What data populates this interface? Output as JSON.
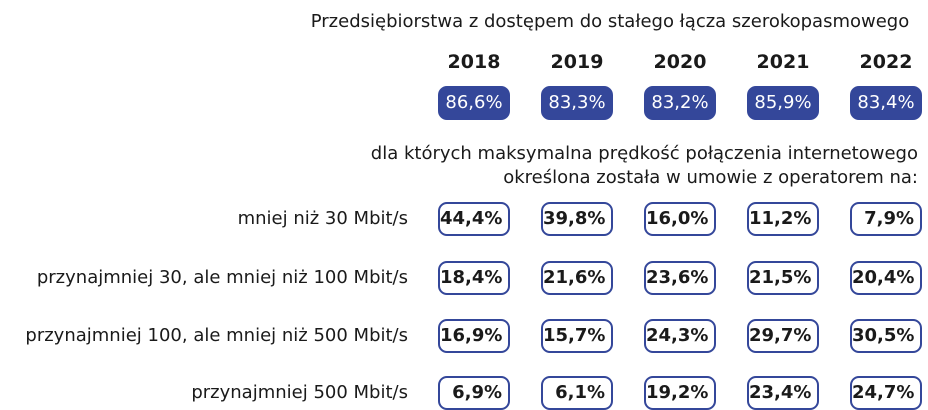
{
  "header": {
    "title": "Przedsiębiorstwa z dostępem do stałego łącza szerokopasmowego"
  },
  "years": [
    "2018",
    "2019",
    "2020",
    "2021",
    "2022"
  ],
  "access": [
    "86,6%",
    "83,3%",
    "83,2%",
    "85,9%",
    "83,4%"
  ],
  "subtitle": [
    "dla których maksymalna prędkość połączenia internetowego",
    "określona została w umowie z operatorem na:"
  ],
  "rows": [
    {
      "label": "mniej niż 30 Mbit/s",
      "values": [
        "44,4%",
        "39,8%",
        "16,0%",
        "11,2%",
        "7,9%"
      ]
    },
    {
      "label": "przynajmniej 30, ale mniej niż 100 Mbit/s",
      "values": [
        "18,4%",
        "21,6%",
        "23,6%",
        "21,5%",
        "20,4%"
      ]
    },
    {
      "label": "przynajmniej 100, ale mniej niż 500 Mbit/s",
      "values": [
        "16,9%",
        "15,7%",
        "24,3%",
        "29,7%",
        "30,5%"
      ]
    },
    {
      "label": "przynajmniej 500 Mbit/s",
      "values": [
        "6,9%",
        "6,1%",
        "19,2%",
        "23,4%",
        "24,7%"
      ]
    }
  ]
}
